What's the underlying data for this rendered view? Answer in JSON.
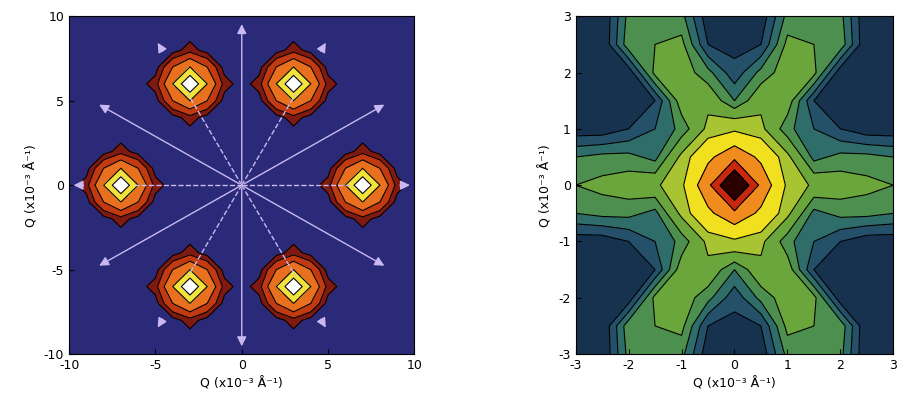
{
  "chart_data": [
    {
      "type": "contour",
      "xlabel": "Q (x10⁻³ Å⁻¹)",
      "ylabel": "Q (x10⁻³ Å⁻¹)",
      "xlim": [
        -10,
        10
      ],
      "ylim": [
        -10,
        10
      ],
      "xticks": [
        -10,
        -5,
        0,
        5,
        10
      ],
      "yticks": [
        -10,
        -5,
        0,
        5,
        10
      ],
      "contour_levels": [
        0.5,
        1.5,
        3,
        5,
        7.5,
        11
      ],
      "x": [
        -10,
        -9,
        -8,
        -7,
        -6,
        -5,
        -4,
        -3,
        -2,
        -1,
        0,
        1,
        2,
        3,
        4,
        5,
        6,
        7,
        8,
        9,
        10
      ],
      "y": [
        -10,
        -9,
        -8,
        -7,
        -6,
        -5,
        -4,
        -3,
        -2,
        -1,
        0,
        1,
        2,
        3,
        4,
        5,
        6,
        7,
        8,
        9,
        10
      ],
      "values": [
        [
          0,
          0,
          0,
          0,
          0,
          0,
          0,
          0,
          0,
          0,
          0,
          0,
          0,
          0,
          0,
          0,
          0,
          0,
          0,
          0,
          0
        ],
        [
          0,
          0,
          0,
          0,
          0,
          0,
          0,
          0,
          0,
          0,
          0,
          0,
          0,
          0,
          0,
          0,
          0,
          0,
          0,
          0,
          0
        ],
        [
          0,
          0,
          0,
          0,
          0,
          0,
          0,
          1,
          0,
          0,
          0,
          0,
          0,
          1,
          0,
          0,
          0,
          0,
          0,
          0,
          0
        ],
        [
          0,
          0,
          0,
          0,
          0,
          0,
          3,
          5,
          3,
          0,
          0,
          0,
          3,
          5,
          3,
          0,
          0,
          0,
          0,
          0,
          0
        ],
        [
          0,
          0,
          0,
          0,
          0,
          1,
          5,
          10,
          5,
          1,
          0,
          1,
          5,
          10,
          5,
          1,
          0,
          0,
          0,
          0,
          0
        ],
        [
          0,
          0,
          0,
          0,
          0,
          0,
          3,
          5,
          3,
          0,
          0,
          0,
          3,
          5,
          3,
          0,
          0,
          0,
          0,
          0,
          0
        ],
        [
          0,
          0,
          0,
          0,
          0,
          0,
          0,
          1,
          0,
          0,
          0,
          0,
          0,
          1,
          0,
          0,
          0,
          0,
          0,
          0,
          0
        ],
        [
          0,
          0,
          0,
          0,
          0,
          0,
          0,
          0,
          0,
          0,
          0,
          0,
          0,
          0,
          0,
          0,
          0,
          0,
          0,
          0,
          0
        ],
        [
          0,
          0,
          0,
          1,
          0,
          0,
          0,
          0,
          0,
          0,
          0,
          0,
          0,
          0,
          0,
          0,
          0,
          1,
          0,
          0,
          0
        ],
        [
          0,
          0,
          3,
          5,
          3,
          0,
          0,
          0,
          0,
          0,
          0,
          0,
          0,
          0,
          0,
          0,
          3,
          5,
          3,
          0,
          0
        ],
        [
          0,
          1,
          5,
          10,
          5,
          1,
          0,
          0,
          0,
          0,
          0,
          0,
          0,
          0,
          0,
          1,
          5,
          10,
          5,
          1,
          0
        ],
        [
          0,
          0,
          3,
          5,
          3,
          0,
          0,
          0,
          0,
          0,
          0,
          0,
          0,
          0,
          0,
          0,
          3,
          5,
          3,
          0,
          0
        ],
        [
          0,
          0,
          0,
          1,
          0,
          0,
          0,
          0,
          0,
          0,
          0,
          0,
          0,
          0,
          0,
          0,
          0,
          1,
          0,
          0,
          0
        ],
        [
          0,
          0,
          0,
          0,
          0,
          0,
          0,
          0,
          0,
          0,
          0,
          0,
          0,
          0,
          0,
          0,
          0,
          0,
          0,
          0,
          0
        ],
        [
          0,
          0,
          0,
          0,
          0,
          0,
          0,
          1,
          0,
          0,
          0,
          0,
          0,
          1,
          0,
          0,
          0,
          0,
          0,
          0,
          0
        ],
        [
          0,
          0,
          0,
          0,
          0,
          0,
          3,
          5,
          3,
          0,
          0,
          0,
          3,
          5,
          3,
          0,
          0,
          0,
          0,
          0,
          0
        ],
        [
          0,
          0,
          0,
          0,
          0,
          1,
          5,
          10,
          5,
          1,
          0,
          1,
          5,
          10,
          5,
          1,
          0,
          0,
          0,
          0,
          0
        ],
        [
          0,
          0,
          0,
          0,
          0,
          0,
          3,
          5,
          3,
          0,
          0,
          0,
          3,
          5,
          3,
          0,
          0,
          0,
          0,
          0,
          0
        ],
        [
          0,
          0,
          0,
          0,
          0,
          0,
          0,
          1,
          0,
          0,
          0,
          0,
          0,
          1,
          0,
          0,
          0,
          0,
          0,
          0,
          0
        ],
        [
          0,
          0,
          0,
          0,
          0,
          0,
          0,
          0,
          0,
          0,
          0,
          0,
          0,
          0,
          0,
          0,
          0,
          0,
          0,
          0,
          0
        ],
        [
          0,
          0,
          0,
          0,
          0,
          0,
          0,
          0,
          0,
          0,
          0,
          0,
          0,
          0,
          0,
          0,
          0,
          0,
          0,
          0,
          0
        ]
      ]
    },
    {
      "type": "contour",
      "xlabel": "Q (x10⁻³ Å⁻¹)",
      "ylabel": "Q (x10⁻³ Å⁻¹)",
      "xlim": [
        -3,
        3
      ],
      "ylim": [
        -3,
        3
      ],
      "xticks": [
        -3,
        -2,
        -1,
        0,
        1,
        2,
        3
      ],
      "yticks": [
        -3,
        -2,
        -1,
        0,
        1,
        2,
        3
      ],
      "contour_levels": [
        0.9,
        1.3,
        1.6,
        1.9,
        2.2,
        2.6,
        3.2,
        4.5,
        6,
        8,
        11.5
      ],
      "x": [
        -3,
        -2.5,
        -2,
        -1.5,
        -1,
        -0.5,
        0,
        0.5,
        1,
        1.5,
        2,
        2.5,
        3
      ],
      "y": [
        -3,
        -2.5,
        -2,
        -1.5,
        -1,
        -0.5,
        0,
        0.5,
        1,
        1.5,
        2,
        2.5,
        3
      ],
      "values": [
        [
          1.0,
          1.0,
          2.0,
          2.1,
          2.0,
          1.1,
          1.1,
          1.1,
          2.0,
          2.1,
          2.0,
          1.0,
          1.0
        ],
        [
          1.0,
          1.0,
          2.1,
          2.2,
          2.3,
          1.3,
          1.2,
          1.3,
          2.3,
          2.2,
          2.1,
          1.0,
          1.0
        ],
        [
          1.0,
          1.0,
          1.1,
          2.3,
          2.4,
          2.0,
          1.4,
          2.0,
          2.4,
          2.3,
          1.1,
          1.0,
          1.0
        ],
        [
          1.0,
          1.1,
          1.2,
          1.3,
          2.4,
          2.5,
          1.9,
          2.5,
          2.4,
          1.3,
          1.2,
          1.1,
          1.0
        ],
        [
          1.1,
          1.1,
          1.3,
          1.6,
          2.0,
          2.7,
          3.0,
          2.7,
          2.0,
          1.6,
          1.3,
          1.1,
          1.1
        ],
        [
          1.9,
          2.0,
          2.0,
          1.8,
          2.7,
          4.2,
          5.5,
          4.2,
          2.7,
          1.8,
          2.0,
          2.0,
          1.9
        ],
        [
          2.2,
          2.3,
          2.4,
          2.5,
          3.0,
          5.5,
          11,
          5.5,
          3.0,
          2.5,
          2.4,
          2.3,
          2.2
        ],
        [
          1.9,
          2.0,
          2.0,
          1.8,
          2.7,
          4.2,
          5.5,
          4.2,
          2.7,
          1.8,
          2.0,
          2.0,
          1.9
        ],
        [
          1.1,
          1.1,
          1.3,
          1.6,
          2.0,
          2.7,
          3.0,
          2.7,
          2.0,
          1.6,
          1.3,
          1.1,
          1.1
        ],
        [
          1.0,
          1.1,
          1.2,
          1.3,
          2.4,
          2.5,
          1.9,
          2.5,
          2.4,
          1.3,
          1.2,
          1.1,
          1.0
        ],
        [
          1.0,
          1.0,
          1.1,
          2.3,
          2.4,
          2.0,
          1.4,
          2.0,
          2.4,
          2.3,
          1.1,
          1.0,
          1.0
        ],
        [
          1.0,
          1.0,
          2.1,
          2.2,
          2.3,
          1.3,
          1.2,
          1.3,
          2.3,
          2.2,
          2.1,
          1.0,
          1.0
        ],
        [
          1.0,
          1.0,
          2.0,
          2.1,
          2.0,
          1.1,
          1.1,
          1.1,
          2.0,
          2.1,
          2.0,
          1.0,
          1.0
        ]
      ]
    }
  ]
}
